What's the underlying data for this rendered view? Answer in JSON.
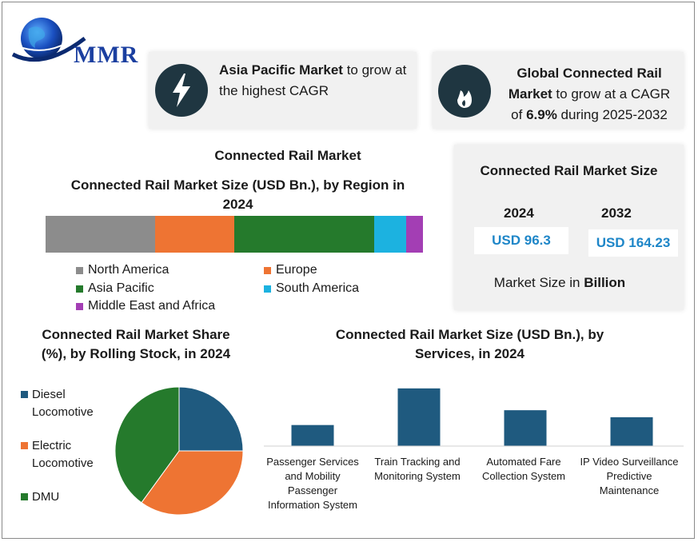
{
  "logo": {
    "text": "MMR"
  },
  "highlights": [
    {
      "bold": "Asia Pacific Market",
      "rest": " to grow at the highest CAGR",
      "icon": "lightning-icon"
    },
    {
      "line1": "Global Connected Rail",
      "line2_bold": "Market",
      "line2_rest": " to grow at a CAGR",
      "line3_pre": "of ",
      "line3_bold": "6.9%",
      "line3_rest": " during 2025-2032",
      "icon": "flame-icon"
    }
  ],
  "page_title": "Connected Rail Market",
  "market_size": {
    "title": "Connected Rail Market Size",
    "years": [
      "2024",
      "2032"
    ],
    "values": [
      "USD 96.3",
      "USD 164.23"
    ],
    "note_pre": "Market Size in ",
    "note_bold": "Billion"
  },
  "colors": {
    "north_america": "#8c8c8c",
    "europe": "#ee7433",
    "asia_pacific": "#257a2c",
    "south_america": "#1cb2e0",
    "mea": "#a33eb4",
    "diesel": "#1f5a7f",
    "electric": "#ee7433",
    "dmu": "#257a2c",
    "services_bar": "#1f5a7f",
    "icon_circle": "#1f3641"
  },
  "chart_data": [
    {
      "type": "bar",
      "orientation": "horizontal-stacked",
      "title": "Connected Rail Market Size (USD Bn.), by Region in 2024",
      "series": [
        {
          "name": "North America",
          "values": [
            29
          ]
        },
        {
          "name": "Europe",
          "values": [
            21
          ]
        },
        {
          "name": "Asia Pacific",
          "values": [
            37
          ]
        },
        {
          "name": "South America",
          "values": [
            8.5
          ]
        },
        {
          "name": "Middle East and Africa",
          "values": [
            4.5
          ]
        }
      ],
      "legend": "bottom"
    },
    {
      "type": "pie",
      "title": "Connected Rail Market Share (%), by Rolling Stock, in 2024",
      "labels": [
        "Diesel Locomotive",
        "Electric Locomotive",
        "DMU"
      ],
      "values": [
        25,
        35,
        40
      ],
      "legend": "left"
    },
    {
      "type": "bar",
      "title": "Connected Rail Market Size (USD Bn.), by Services, in 2024",
      "categories": [
        "Passenger Services and Mobility Passenger Information System",
        "Train Tracking and Monitoring System",
        "Automated Fare Collection System",
        "IP Video Surveillance Predictive Maintenance"
      ],
      "values": [
        27,
        74,
        46,
        37
      ],
      "ylim": [
        0,
        80
      ]
    }
  ],
  "labels": {
    "region_title_line1": "Connected Rail Market Size (USD Bn.), by Region in",
    "region_title_line2": "2024",
    "pie_title_line1": "Connected Rail Market Share",
    "pie_title_line2": "(%), by Rolling Stock, in 2024",
    "services_title_line1": "Connected Rail Market Size (USD Bn.), by",
    "services_title_line2": "Services, in 2024",
    "pie_legend": [
      {
        "line1": "Diesel",
        "line2": "Locomotive"
      },
      {
        "line1": "Electric",
        "line2": "Locomotive"
      },
      {
        "line1": "DMU",
        "line2": ""
      }
    ],
    "service_cats": [
      [
        "Passenger Services",
        "and Mobility",
        "Passenger",
        "Information System"
      ],
      [
        "Train Tracking and",
        "Monitoring System"
      ],
      [
        "Automated Fare",
        "Collection System"
      ],
      [
        "IP Video Surveillance",
        "Predictive",
        "Maintenance"
      ]
    ]
  }
}
